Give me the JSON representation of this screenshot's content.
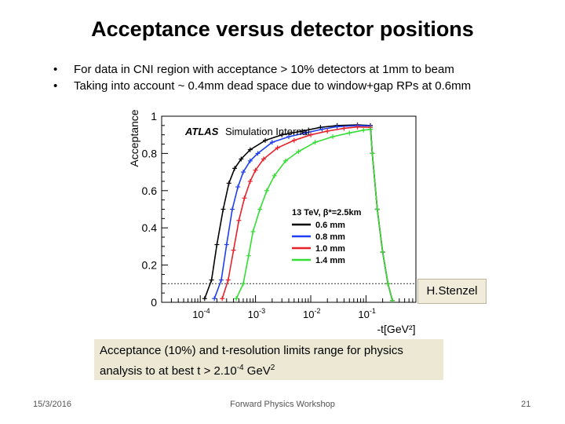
{
  "slide": {
    "title": "Acceptance versus detector positions",
    "bullets": [
      "For data in CNI region with acceptance > 10% detectors at 1mm to beam",
      "Taking into account ~ 0.4mm dead space due to window+gap RPs at 0.6mm"
    ],
    "note_line1": "Acceptance (10%) and t-resolution limits range for physics",
    "note_line2_pre": "analysis to at best t > 2.10",
    "note_line2_exp": "-4",
    "note_line2_mid": " GeV",
    "note_line2_exp2": "2",
    "credit": "H.Stenzel",
    "footer_date": "15/3/2016",
    "footer_center": "Forward Physics Workshop",
    "footer_page": "21"
  },
  "chart_data": {
    "type": "line",
    "ylabel": "Acceptance",
    "xlabel": "-t[GeV²]",
    "xscale": "log",
    "xlim": [
      2e-05,
      0.8
    ],
    "ylim": [
      0,
      1
    ],
    "y_ticks": [
      "0",
      "0.2",
      "0.4",
      "0.6",
      "0.8",
      "1"
    ],
    "x_ticks": [
      {
        "base": "10",
        "exp": "-4",
        "value": 0.0001
      },
      {
        "base": "10",
        "exp": "-3",
        "value": 0.001
      },
      {
        "base": "10",
        "exp": "-2",
        "value": 0.01
      },
      {
        "base": "10",
        "exp": "-1",
        "value": 0.1
      }
    ],
    "threshold": 0.1,
    "label_atlas": "ATLAS",
    "label_sim": "Simulation Internal",
    "legend_title": "13 TeV, β*=2.5km",
    "legend_placement": "center-right",
    "series": [
      {
        "name": "0.6 mm",
        "color": "#000000",
        "x": [
          0.00012,
          0.00016,
          0.0002,
          0.00026,
          0.00033,
          0.00042,
          0.00055,
          0.0008,
          0.0015,
          0.003,
          0.007,
          0.015,
          0.03,
          0.07,
          0.12,
          0.13,
          0.16,
          0.2,
          0.25,
          0.3
        ],
        "y": [
          0.02,
          0.12,
          0.31,
          0.5,
          0.64,
          0.72,
          0.77,
          0.82,
          0.87,
          0.9,
          0.92,
          0.94,
          0.95,
          0.953,
          0.95,
          0.8,
          0.5,
          0.27,
          0.1,
          0.01
        ]
      },
      {
        "name": "0.8 mm",
        "color": "#1f3ff0",
        "x": [
          0.00018,
          0.00024,
          0.0003,
          0.00038,
          0.00048,
          0.0006,
          0.0008,
          0.0011,
          0.002,
          0.004,
          0.008,
          0.016,
          0.03,
          0.07,
          0.12,
          0.13,
          0.16,
          0.2,
          0.25,
          0.3
        ],
        "y": [
          0.02,
          0.12,
          0.31,
          0.5,
          0.62,
          0.7,
          0.76,
          0.8,
          0.86,
          0.89,
          0.91,
          0.93,
          0.944,
          0.95,
          0.948,
          0.8,
          0.5,
          0.27,
          0.1,
          0.01
        ]
      },
      {
        "name": "1.0 mm",
        "color": "#e8202a",
        "x": [
          0.00025,
          0.00032,
          0.0004,
          0.0005,
          0.00063,
          0.0008,
          0.001,
          0.0014,
          0.0025,
          0.005,
          0.01,
          0.02,
          0.04,
          0.07,
          0.12,
          0.13,
          0.16,
          0.2,
          0.25,
          0.3
        ],
        "y": [
          0.02,
          0.12,
          0.28,
          0.44,
          0.56,
          0.65,
          0.71,
          0.77,
          0.83,
          0.87,
          0.9,
          0.92,
          0.935,
          0.942,
          0.94,
          0.8,
          0.5,
          0.27,
          0.1,
          0.01
        ]
      },
      {
        "name": "1.4 mm",
        "color": "#33dd33",
        "x": [
          0.00045,
          0.0006,
          0.00075,
          0.0009,
          0.0012,
          0.0016,
          0.0022,
          0.0035,
          0.006,
          0.012,
          0.025,
          0.05,
          0.09,
          0.12,
          0.13,
          0.16,
          0.2,
          0.25,
          0.3
        ],
        "y": [
          0.02,
          0.1,
          0.25,
          0.38,
          0.5,
          0.6,
          0.68,
          0.76,
          0.81,
          0.86,
          0.89,
          0.91,
          0.925,
          0.93,
          0.8,
          0.5,
          0.27,
          0.1,
          0.01
        ]
      }
    ]
  }
}
